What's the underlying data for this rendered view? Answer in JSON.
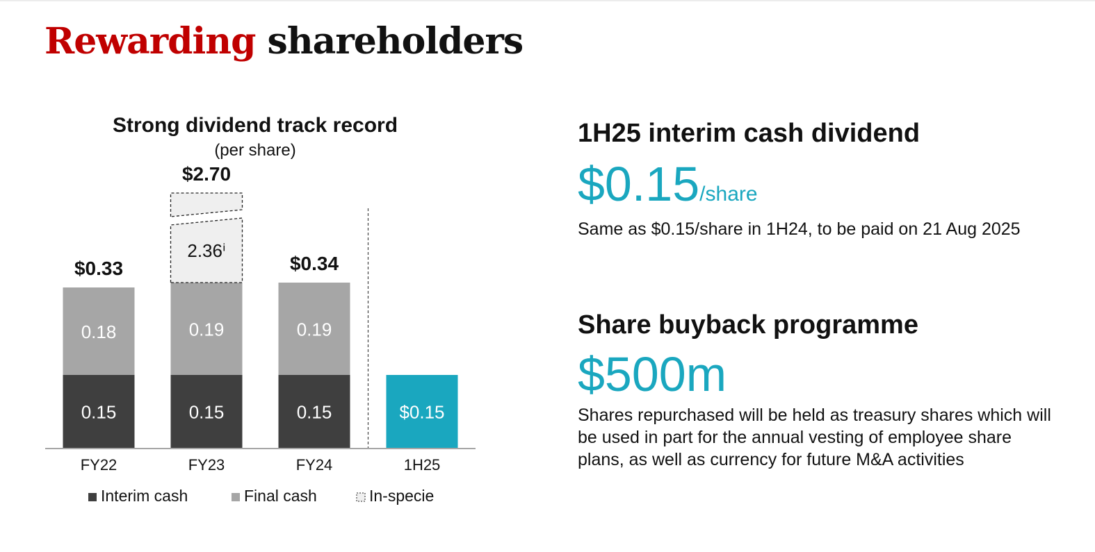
{
  "page": {
    "title_accent": "Rewarding",
    "title_rest": "shareholders"
  },
  "colors": {
    "accent_red": "#c00000",
    "teal": "#1aa7bf",
    "interim_cash": "#3f3f3f",
    "final_cash": "#a6a6a6",
    "in_specie_fill": "#efefef",
    "text": "#111111"
  },
  "chart_data": {
    "type": "bar",
    "stacked": true,
    "title": "Strong dividend track record",
    "subtitle": "(per share)",
    "categories": [
      "FY22",
      "FY23",
      "FY24",
      "1H25"
    ],
    "series": [
      {
        "name": "Interim cash",
        "values": [
          0.15,
          0.15,
          0.15,
          0.15
        ],
        "color": "#3f3f3f"
      },
      {
        "name": "Final cash",
        "values": [
          0.18,
          0.19,
          0.19,
          null
        ],
        "color": "#a6a6a6"
      },
      {
        "name": "In-specie",
        "values": [
          null,
          2.36,
          null,
          null
        ],
        "color": "#efefef",
        "style": "dashed"
      }
    ],
    "segment_labels": [
      [
        "0.15",
        "0.18",
        null
      ],
      [
        "0.15",
        "0.19",
        "2.36ⁱ"
      ],
      [
        "0.15",
        "0.19",
        null
      ],
      [
        "$0.15",
        null,
        null
      ]
    ],
    "totals": [
      "$0.33",
      "$2.70",
      "$0.34",
      null
    ],
    "highlight_category": "1H25",
    "highlight_color": "#1aa7bf",
    "broken_axis": true,
    "divider_before": "1H25",
    "legend": [
      "Interim cash",
      "Final cash",
      "In-specie"
    ],
    "legend_position": "bottom",
    "grid": false,
    "xlabel": "",
    "ylabel": ""
  },
  "interim": {
    "heading": "1H25 interim cash dividend",
    "value": "$0.15",
    "unit": "/share",
    "description": "Same as $0.15/share in 1H24, to be paid on 21 Aug 2025"
  },
  "buyback": {
    "heading": "Share buyback programme",
    "value": "$500m",
    "description": "Shares repurchased will be held as treasury shares which will be used in part for the annual vesting of employee share plans, as well as currency for future M&A activities"
  }
}
